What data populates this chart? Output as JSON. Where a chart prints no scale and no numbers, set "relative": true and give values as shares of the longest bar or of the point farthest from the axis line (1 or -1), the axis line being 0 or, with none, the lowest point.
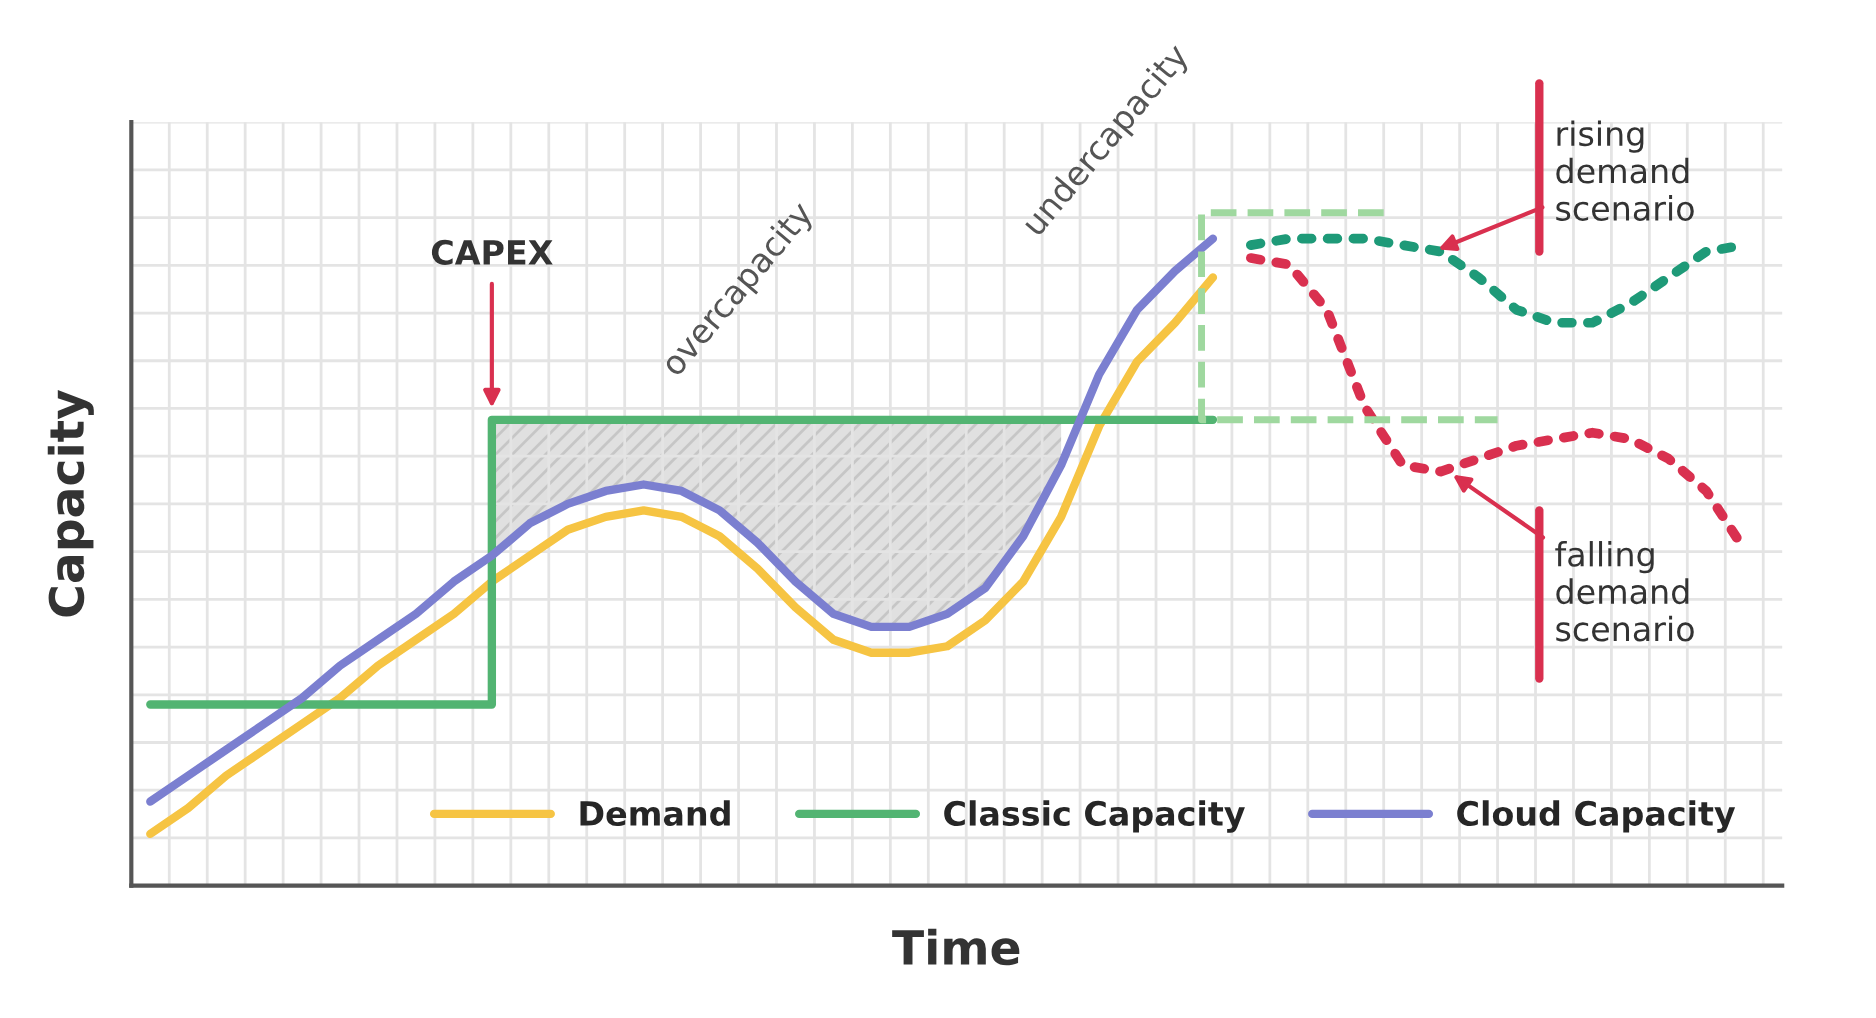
{
  "chart_data": {
    "type": "line",
    "xlabel": "Time",
    "ylabel": "Capacity",
    "relative": true,
    "grid": true,
    "legend": "bottom right",
    "marker": "none",
    "categories": [
      null,
      null,
      null,
      null,
      null,
      null,
      null,
      null,
      null,
      null,
      null,
      null,
      null,
      null,
      null,
      null,
      null,
      null,
      null,
      null,
      null,
      null,
      null,
      null,
      null,
      null,
      null,
      null,
      null,
      null,
      null,
      null,
      null,
      null,
      null,
      null,
      null,
      null,
      null,
      null,
      null,
      null,
      null
    ],
    "series": [
      {
        "name": "Demand",
        "color": "#f6c443",
        "line_style": "solid",
        "values": [
          0.08,
          0.12,
          0.17,
          0.21,
          0.25,
          0.29,
          0.34,
          0.38,
          0.42,
          0.47,
          0.51,
          0.55,
          0.57,
          0.58,
          0.57,
          0.54,
          0.49,
          0.43,
          0.38,
          0.36,
          0.36,
          0.37,
          0.41,
          0.47,
          0.57,
          0.71,
          0.81,
          0.87,
          0.94,
          null,
          null,
          null,
          null,
          null,
          null,
          null,
          null,
          null,
          null,
          null,
          null,
          null,
          null
        ]
      },
      {
        "name": "Classic Capacity",
        "type": "step",
        "color": "#52b472",
        "line_style": "solid",
        "values": [
          0.28,
          0.28,
          0.28,
          0.28,
          0.28,
          0.28,
          0.28,
          0.28,
          0.28,
          0.72,
          0.72,
          0.72,
          0.72,
          0.72,
          0.72,
          0.72,
          0.72,
          0.72,
          0.72,
          0.72,
          0.72,
          0.72,
          0.72,
          0.72,
          0.72,
          0.72,
          0.72,
          0.72,
          0.72,
          null,
          null,
          null,
          null,
          null,
          null,
          null,
          null,
          null,
          null,
          null,
          null,
          null,
          null
        ]
      },
      {
        "name": "Cloud Capacity",
        "color": "#7b7fd0",
        "line_style": "solid",
        "values": [
          0.13,
          0.17,
          0.21,
          0.25,
          0.29,
          0.34,
          0.38,
          0.42,
          0.47,
          0.51,
          0.56,
          0.59,
          0.61,
          0.62,
          0.61,
          0.58,
          0.53,
          0.47,
          0.42,
          0.4,
          0.4,
          0.42,
          0.46,
          0.54,
          0.65,
          0.79,
          0.89,
          0.95,
          1.0,
          null,
          null,
          null,
          null,
          null,
          null,
          null,
          null,
          null,
          null,
          null,
          null,
          null,
          null
        ]
      },
      {
        "color": "#1e9a78",
        "line_style": "dotted",
        "values": [
          null,
          null,
          null,
          null,
          null,
          null,
          null,
          null,
          null,
          null,
          null,
          null,
          null,
          null,
          null,
          null,
          null,
          null,
          null,
          null,
          null,
          null,
          null,
          null,
          null,
          null,
          null,
          null,
          null,
          0.99,
          1.0,
          1.0,
          1.0,
          0.99,
          0.98,
          0.94,
          0.89,
          0.87,
          0.87,
          0.9,
          0.94,
          0.98,
          0.99
        ]
      },
      {
        "color": "#d9304f",
        "line_style": "dotted",
        "values": [
          null,
          null,
          null,
          null,
          null,
          null,
          null,
          null,
          null,
          null,
          null,
          null,
          null,
          null,
          null,
          null,
          null,
          null,
          null,
          null,
          null,
          null,
          null,
          null,
          null,
          null,
          null,
          null,
          null,
          0.97,
          0.96,
          0.89,
          0.74,
          0.65,
          0.64,
          0.66,
          0.68,
          0.69,
          0.7,
          0.69,
          0.66,
          0.61,
          0.52
        ]
      }
    ],
    "annotations": [
      "CAPEX",
      "overcapacity",
      "undercapacity",
      "rising\ndemand\nscenario",
      "falling\ndemand\nscenario"
    ]
  }
}
